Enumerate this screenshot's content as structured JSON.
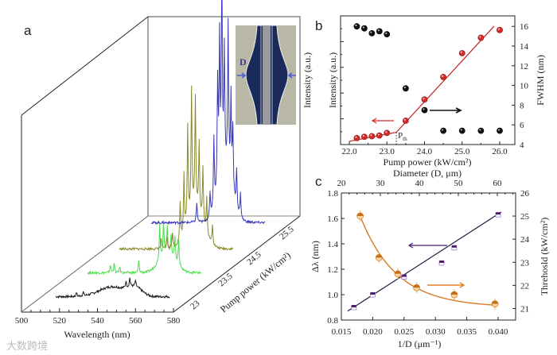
{
  "chart_data": [
    {
      "panel": "a",
      "type": "line",
      "subtype": "3d-waterfall",
      "xlabel": "Wavelength (nm)",
      "zlabel": "Pump power (kW/cm²)",
      "ylabel": "Intensity (a.u.)",
      "xlim": [
        500,
        580
      ],
      "xticks": [
        "500",
        "520",
        "540",
        "560",
        "580"
      ],
      "zticks": [
        "23",
        "23.5",
        "24.5",
        "25.5"
      ],
      "wavelength_range": [
        518,
        578
      ],
      "inset_label": "D",
      "series": [
        {
          "name": "23",
          "color": "#1a1a1a",
          "broad": [
            [
              548,
              0.05,
              10
            ],
            [
              560,
              0.04,
              5
            ]
          ],
          "peaks": [
            [
              529,
              0.02
            ],
            [
              532.5,
              0.02
            ],
            [
              555,
              0.035
            ],
            [
              557,
              0.045
            ],
            [
              560,
              0.03
            ]
          ]
        },
        {
          "name": "23.5",
          "color": "#4be04b",
          "broad": [
            [
              560,
              0.1,
              6
            ]
          ],
          "peaks": [
            [
              530,
              0.04
            ],
            [
              532,
              0.05
            ],
            [
              535,
              0.03
            ],
            [
              545,
              0.06
            ],
            [
              556,
              0.18
            ],
            [
              558,
              0.17
            ],
            [
              560,
              0.14
            ],
            [
              562,
              0.1
            ],
            [
              564,
              0.12
            ],
            [
              566,
              0.13
            ]
          ]
        },
        {
          "name": "24.5",
          "color": "#8a8a2a",
          "broad": [
            [
              558,
              0.2,
              6
            ]
          ],
          "peaks": [
            [
              540,
              0.05
            ],
            [
              543,
              0.06
            ],
            [
              546,
              0.08
            ],
            [
              550,
              0.2
            ],
            [
              552,
              0.3
            ],
            [
              554,
              0.48
            ],
            [
              556,
              0.62
            ],
            [
              558,
              0.55
            ],
            [
              560,
              0.35
            ],
            [
              562,
              0.28
            ],
            [
              564,
              0.18
            ],
            [
              567,
              0.1
            ]
          ]
        },
        {
          "name": "25.5",
          "color": "#3a3ab8",
          "broad": [
            [
              557,
              0.25,
              5
            ]
          ],
          "peaks": [
            [
              542,
              0.1
            ],
            [
              549,
              0.12
            ],
            [
              551,
              0.35
            ],
            [
              553,
              0.55
            ],
            [
              554,
              0.72
            ],
            [
              555.2,
              0.98
            ],
            [
              556.5,
              0.6
            ],
            [
              558.5,
              0.75
            ],
            [
              560,
              0.45
            ],
            [
              561,
              0.32
            ],
            [
              563,
              0.2
            ],
            [
              565,
              0.12
            ]
          ]
        }
      ]
    },
    {
      "panel": "b",
      "type": "scatter",
      "xlabel": "Pump power (kW/cm²)",
      "xlabel2": "Diameter (D, μm)",
      "ylabel": "Intensity (a.u.)",
      "y2label": "FWHM (nm)",
      "xlim": [
        21.75,
        26.4
      ],
      "ylim": [
        0,
        10
      ],
      "y2lim": [
        4,
        17
      ],
      "xticks": [
        "22.0",
        "23.0",
        "24.0",
        "25.0",
        "26.0"
      ],
      "y2ticks": [
        "4",
        "6",
        "8",
        "10",
        "12",
        "14",
        "16"
      ],
      "threshold_label": "P",
      "threshold_sub": "th",
      "threshold_x": 23.25,
      "x": [
        22.2,
        22.4,
        22.6,
        22.8,
        23.0,
        23.5,
        24.0,
        24.5,
        25.0,
        25.5,
        26.0
      ],
      "series": [
        {
          "name": "Intensity",
          "axis": "left",
          "color": "#d42a2a",
          "values": [
            0.5,
            0.6,
            0.65,
            0.7,
            0.9,
            1.85,
            3.5,
            5.25,
            7.1,
            8.3,
            8.9
          ]
        },
        {
          "name": "FWHM",
          "axis": "right",
          "color": "#111111",
          "values": [
            16.0,
            15.8,
            15.3,
            15.5,
            15.2,
            9.7,
            7.5,
            5.4,
            5.4,
            5.4,
            5.4
          ]
        }
      ],
      "fits": [
        {
          "color": "#c42020",
          "points": [
            [
              22.0,
              0.25
            ],
            [
              23.25,
              0.95
            ],
            [
              25.85,
              9.2
            ]
          ]
        }
      ]
    },
    {
      "panel": "c",
      "type": "scatter",
      "xlabel": "1/D (μm⁻¹)",
      "x2label": "Diameter (D, μm)",
      "ylabel": "Δλ (nm)",
      "y2label": "Threhosld (kW/cm²)",
      "xlim": [
        0.015,
        0.0425
      ],
      "x2lim": [
        20,
        64
      ],
      "ylim": [
        0.8,
        1.8
      ],
      "y2lim": [
        20.5,
        26
      ],
      "xticks": [
        "0.015",
        "0.020",
        "0.025",
        "0.030",
        "0.035",
        "0.040"
      ],
      "x2ticks": [
        "20",
        "30",
        "40",
        "50",
        "60"
      ],
      "yticks": [
        "0.8",
        "1.0",
        "1.2",
        "1.4",
        "1.6",
        "1.8"
      ],
      "y2ticks": [
        "21",
        "22",
        "23",
        "24",
        "25",
        "26"
      ],
      "series": [
        {
          "name": "Δλ",
          "axis": "left",
          "color": "#4b1f6e",
          "x": [
            0.017,
            0.02,
            0.025,
            0.031,
            0.033,
            0.04
          ],
          "values": [
            0.9,
            1.0,
            1.14,
            1.25,
            1.37,
            1.63
          ]
        },
        {
          "name": "Threshold",
          "axis": "right",
          "color": "#e0842a",
          "x": [
            0.018,
            0.021,
            0.024,
            0.027,
            0.033,
            0.0395
          ],
          "values": [
            25.0,
            23.2,
            22.5,
            21.9,
            21.6,
            21.2
          ]
        }
      ],
      "fits": [
        {
          "kind": "linear",
          "color": "#1a1a40",
          "points": [
            [
              0.016,
              0.87
            ],
            [
              0.0405,
              1.65
            ]
          ]
        },
        {
          "kind": "exp-decay",
          "color": "#d87a20",
          "offset": 21.05,
          "amplitude": 3.95,
          "x0": 0.018,
          "tau": 0.0058,
          "range": [
            0.018,
            0.0398
          ]
        }
      ]
    }
  ],
  "watermark": "大数跨境"
}
